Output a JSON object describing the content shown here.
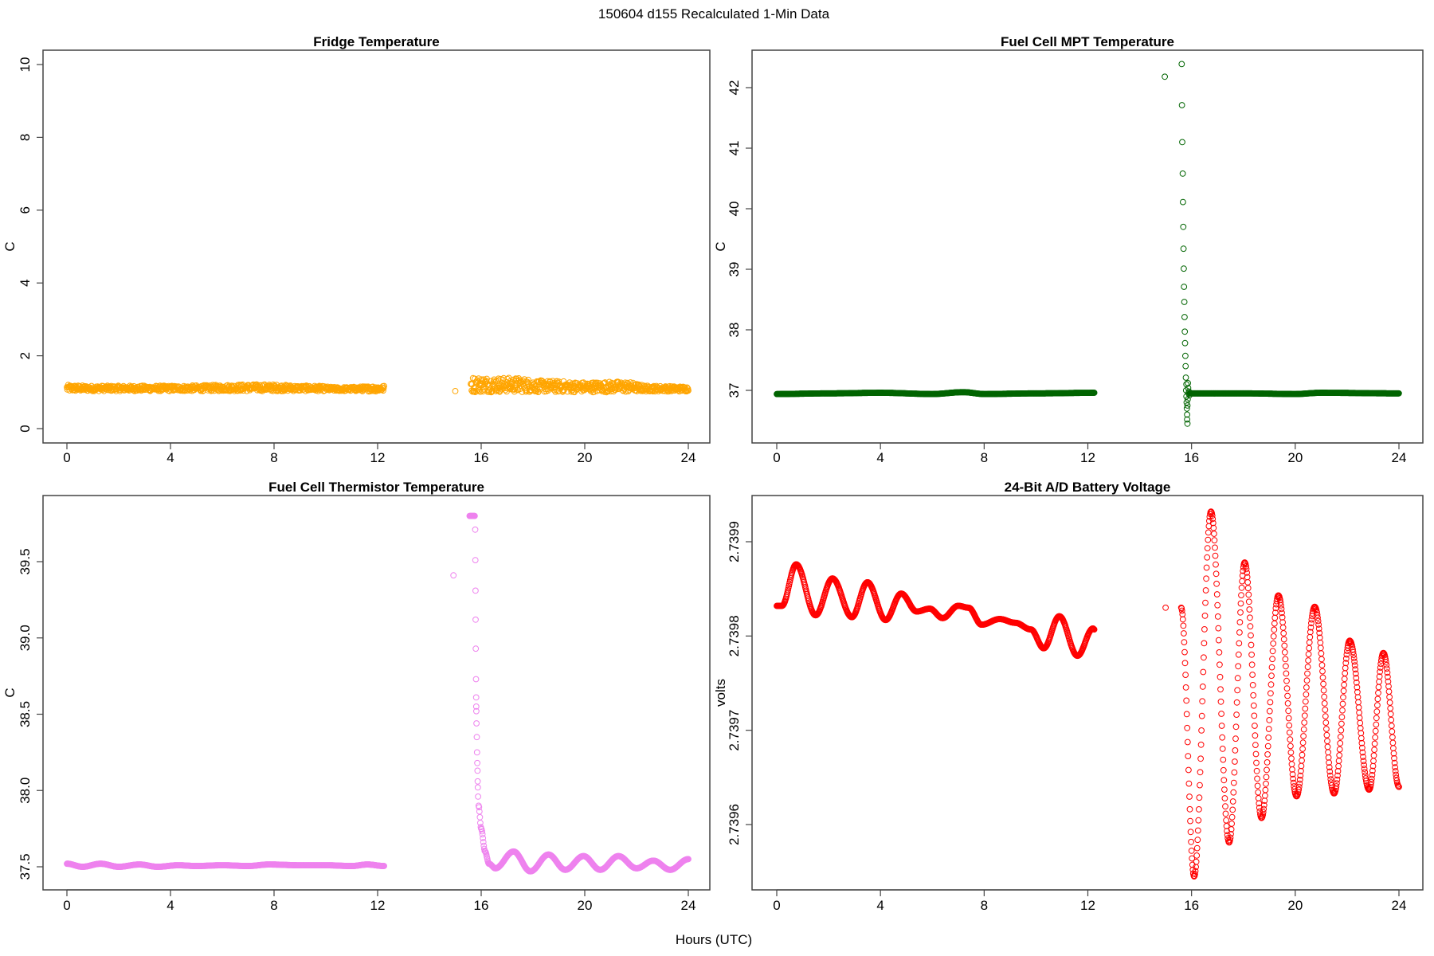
{
  "figure": {
    "title": "150604   d155   Recalculated 1-Min Data",
    "xlabel": "Hours (UTC)"
  },
  "chart_data": [
    {
      "type": "scatter",
      "title": "Fridge Temperature",
      "ylabel": "C",
      "color": "#FFA500",
      "marker": "open-circle",
      "xlim": [
        0,
        24
      ],
      "ylim": [
        0,
        10
      ],
      "xticks": [
        0,
        4,
        8,
        12,
        16,
        20,
        24
      ],
      "xtick_labels": [
        "0",
        "4",
        "8",
        "12",
        "16",
        "20",
        "24"
      ],
      "yticks": [
        0,
        2,
        4,
        6,
        8,
        10
      ],
      "ytick_labels": [
        "0",
        "2",
        "4",
        "6",
        "8",
        "10"
      ],
      "bands": [
        {
          "envelope": [
            [
              0,
              1.02,
              1.2
            ],
            [
              1,
              1.03,
              1.18
            ],
            [
              4,
              1.03,
              1.18
            ],
            [
              7.5,
              1.03,
              1.22
            ],
            [
              9.5,
              1.03,
              1.18
            ],
            [
              10.5,
              1.03,
              1.14
            ],
            [
              12.25,
              1.02,
              1.18
            ]
          ]
        },
        {
          "envelope": [
            [
              15.6,
              1.0,
              1.42
            ],
            [
              17.3,
              1.0,
              1.4
            ],
            [
              18.5,
              1.0,
              1.32
            ],
            [
              20,
              1.0,
              1.28
            ],
            [
              21.5,
              1.0,
              1.3
            ],
            [
              22.5,
              1.02,
              1.18
            ],
            [
              24,
              1.02,
              1.16
            ]
          ]
        }
      ],
      "curves": [],
      "points": [
        [
          15.0,
          1.03
        ]
      ]
    },
    {
      "type": "scatter",
      "title": "Fuel Cell MPT Temperature",
      "ylabel": "C",
      "color": "#006400",
      "marker": "open-circle",
      "xlim": [
        0,
        24
      ],
      "ylim": [
        36.4,
        42.4
      ],
      "xticks": [
        0,
        4,
        8,
        12,
        16,
        20,
        24
      ],
      "xtick_labels": [
        "0",
        "4",
        "8",
        "12",
        "16",
        "20",
        "24"
      ],
      "yticks": [
        37,
        38,
        39,
        40,
        41,
        42
      ],
      "ytick_labels": [
        "37",
        "38",
        "39",
        "40",
        "41",
        "42"
      ],
      "bands": [],
      "curves": [
        {
          "keys": [
            [
              0,
              36.94
            ],
            [
              2,
              36.95
            ],
            [
              4,
              36.96
            ],
            [
              6,
              36.94
            ],
            [
              7.2,
              36.97
            ],
            [
              8,
              36.94
            ],
            [
              10,
              36.95
            ],
            [
              12.25,
              36.96
            ]
          ]
        },
        {
          "keys": [
            [
              15.93,
              36.95
            ],
            [
              18,
              36.95
            ],
            [
              20,
              36.94
            ],
            [
              21,
              36.96
            ],
            [
              24,
              36.95
            ]
          ]
        }
      ],
      "points": [
        [
          14.97,
          42.18
        ],
        [
          15.62,
          42.39
        ],
        [
          15.63,
          41.71
        ],
        [
          15.64,
          41.1
        ],
        [
          15.66,
          40.58
        ],
        [
          15.67,
          40.11
        ],
        [
          15.68,
          39.7
        ],
        [
          15.69,
          39.34
        ],
        [
          15.7,
          39.01
        ],
        [
          15.71,
          38.71
        ],
        [
          15.72,
          38.46
        ],
        [
          15.73,
          38.21
        ],
        [
          15.74,
          37.97
        ],
        [
          15.75,
          37.78
        ],
        [
          15.76,
          37.57
        ],
        [
          15.77,
          37.4
        ],
        [
          15.78,
          37.21
        ],
        [
          15.8,
          37.1
        ],
        [
          15.86,
          37.12
        ],
        [
          15.79,
          37.0
        ],
        [
          15.87,
          37.04
        ],
        [
          15.8,
          36.9
        ],
        [
          15.88,
          36.95
        ],
        [
          15.81,
          36.8
        ],
        [
          15.85,
          36.85
        ],
        [
          15.82,
          36.7
        ],
        [
          15.84,
          36.75
        ],
        [
          15.83,
          36.6
        ],
        [
          15.83,
          36.52
        ],
        [
          15.84,
          36.45
        ],
        [
          15.9,
          36.98
        ],
        [
          15.92,
          36.92
        ]
      ]
    },
    {
      "type": "scatter",
      "title": "Fuel Cell Thermistor Temperature",
      "ylabel": "C",
      "color": "#EE82EE",
      "marker": "open-circle",
      "xlim": [
        0,
        24
      ],
      "ylim": [
        37.45,
        39.85
      ],
      "xticks": [
        0,
        4,
        8,
        12,
        16,
        20,
        24
      ],
      "xtick_labels": [
        "0",
        "4",
        "8",
        "12",
        "16",
        "20",
        "24"
      ],
      "yticks": [
        37.5,
        38.0,
        38.5,
        39.0,
        39.5
      ],
      "ytick_labels": [
        "37.5",
        "38.0",
        "38.5",
        "39.0",
        "39.5"
      ],
      "bands": [],
      "curves": [
        {
          "keys": [
            [
              0,
              37.52
            ],
            [
              0.6,
              37.5
            ],
            [
              1.3,
              37.52
            ],
            [
              2.0,
              37.5
            ],
            [
              2.8,
              37.515
            ],
            [
              3.5,
              37.5
            ],
            [
              4.3,
              37.51
            ],
            [
              5,
              37.505
            ],
            [
              6,
              37.51
            ],
            [
              7,
              37.505
            ],
            [
              7.8,
              37.515
            ],
            [
              9,
              37.51
            ],
            [
              10,
              37.51
            ],
            [
              11,
              37.505
            ],
            [
              11.6,
              37.515
            ],
            [
              12.25,
              37.505
            ]
          ]
        },
        {
          "keys": [
            [
              15.55,
              39.8
            ],
            [
              15.76,
              39.8
            ]
          ]
        },
        {
          "keys": [
            [
              15.9,
              37.9
            ],
            [
              16.0,
              37.75
            ],
            [
              16.15,
              37.6
            ],
            [
              16.3,
              37.52
            ],
            [
              16.55,
              37.49
            ],
            [
              17.25,
              37.6
            ],
            [
              17.9,
              37.47
            ],
            [
              18.6,
              37.58
            ],
            [
              19.25,
              37.48
            ],
            [
              19.95,
              37.57
            ],
            [
              20.6,
              37.48
            ],
            [
              21.3,
              37.57
            ],
            [
              22.0,
              37.49
            ],
            [
              22.65,
              37.54
            ],
            [
              23.3,
              37.48
            ],
            [
              24,
              37.55
            ]
          ]
        }
      ],
      "points": [
        [
          14.93,
          39.41
        ],
        [
          15.77,
          39.71
        ],
        [
          15.775,
          39.51
        ],
        [
          15.78,
          39.31
        ],
        [
          15.785,
          39.12
        ],
        [
          15.79,
          38.93
        ],
        [
          15.8,
          38.73
        ],
        [
          15.805,
          38.61
        ],
        [
          15.81,
          38.55
        ],
        [
          15.812,
          38.52
        ],
        [
          15.82,
          38.44
        ],
        [
          15.83,
          38.35
        ],
        [
          15.84,
          38.25
        ],
        [
          15.85,
          38.18
        ],
        [
          15.86,
          38.13
        ],
        [
          15.865,
          38.06
        ],
        [
          15.87,
          38.02
        ],
        [
          15.88,
          37.96
        ]
      ]
    },
    {
      "type": "scatter",
      "title": "24-Bit A/D Battery Voltage",
      "ylabel": "volts",
      "color": "#FF0000",
      "marker": "open-circle",
      "xlim": [
        0,
        24
      ],
      "ylim": [
        2.73954,
        2.73994
      ],
      "xticks": [
        0,
        4,
        8,
        12,
        16,
        20,
        24
      ],
      "xtick_labels": [
        "0",
        "4",
        "8",
        "12",
        "16",
        "20",
        "24"
      ],
      "yticks": [
        2.7396,
        2.7397,
        2.7398,
        2.7399
      ],
      "ytick_labels": [
        "2.7396",
        "2.7397",
        "2.7398",
        "2.7399"
      ],
      "bands": [],
      "curves": [
        {
          "keys": [
            [
              0,
              2.739832
            ],
            [
              0.2,
              2.739832
            ],
            [
              0.75,
              2.739876
            ],
            [
              1.5,
              2.739822
            ],
            [
              2.15,
              2.739861
            ],
            [
              2.9,
              2.73982
            ],
            [
              3.5,
              2.739857
            ],
            [
              4.2,
              2.739817
            ],
            [
              4.8,
              2.739845
            ],
            [
              5.4,
              2.739826
            ],
            [
              5.9,
              2.739829
            ],
            [
              6.4,
              2.739819
            ],
            [
              7.0,
              2.739832
            ],
            [
              7.4,
              2.73983
            ],
            [
              7.9,
              2.739812
            ],
            [
              8.6,
              2.739818
            ],
            [
              9.2,
              2.739814
            ],
            [
              9.8,
              2.739807
            ],
            [
              10.3,
              2.739787
            ],
            [
              10.9,
              2.739821
            ],
            [
              11.6,
              2.739779
            ],
            [
              12.2,
              2.739808
            ],
            [
              12.25,
              2.739807
            ]
          ]
        },
        {
          "keys": [
            [
              15.6,
              2.73983
            ],
            [
              16.1,
              2.739545
            ],
            [
              16.75,
              2.739932
            ],
            [
              17.45,
              2.739581
            ],
            [
              18.05,
              2.739878
            ],
            [
              18.7,
              2.739607
            ],
            [
              19.35,
              2.739843
            ],
            [
              20.05,
              2.73963
            ],
            [
              20.75,
              2.739831
            ],
            [
              21.5,
              2.739633
            ],
            [
              22.1,
              2.739795
            ],
            [
              22.85,
              2.739637
            ],
            [
              23.4,
              2.739782
            ],
            [
              24,
              2.73964
            ]
          ]
        }
      ],
      "points": [
        [
          15.0,
          2.73983
        ]
      ]
    }
  ]
}
